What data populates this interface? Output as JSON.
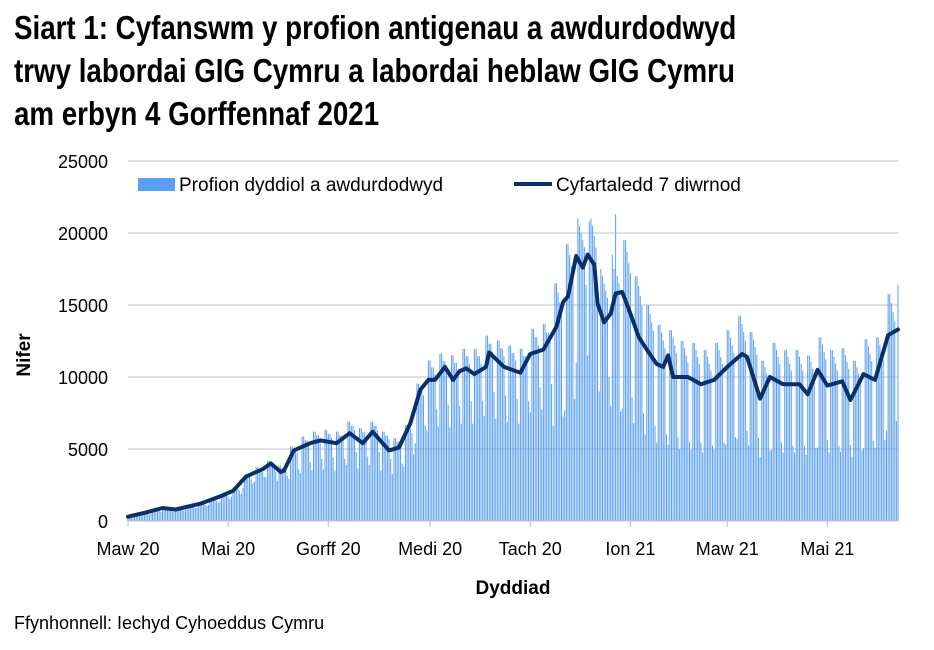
{
  "title_lines": [
    "Siart 1: Cyfanswm y profion antigenau a awdurdodwyd",
    "trwy labordai GIG Cymru a labordai heblaw GIG Cymru",
    "am erbyn 4 Gorffennaf 2021"
  ],
  "source": "Ffynhonnell: Iechyd Cyhoeddus Cymru",
  "chart_data": {
    "type": "bar+line",
    "xlabel": "Dyddiad",
    "ylabel": "Nifer",
    "ylim": [
      0,
      25000
    ],
    "yticks": [
      0,
      5000,
      10000,
      15000,
      20000,
      25000
    ],
    "xlim": [
      "2020-03-01",
      "2021-06-13"
    ],
    "xticks": [
      {
        "date": "2020-03-01",
        "label": "Maw 20"
      },
      {
        "date": "2020-05-01",
        "label": "Mai 20"
      },
      {
        "date": "2020-07-01",
        "label": "Gorff 20"
      },
      {
        "date": "2020-09-01",
        "label": "Medi 20"
      },
      {
        "date": "2020-11-01",
        "label": "Tach 20"
      },
      {
        "date": "2021-01-01",
        "label": "Ion 21"
      },
      {
        "date": "2021-03-01",
        "label": "Maw 21"
      },
      {
        "date": "2021-05-01",
        "label": "Mai 21"
      }
    ],
    "grid": true,
    "legend_position": "top",
    "colors": {
      "bars": "#5b9ff5",
      "line": "#0a2f6b",
      "grid": "#c0c0c0"
    },
    "series": [
      {
        "name": "Profion dyddiol a awdurdodwyd",
        "type": "bar",
        "start_date": "2020-03-01",
        "values": [
          280,
          390,
          390,
          370,
          370,
          350,
          320,
          400,
          550,
          550,
          530,
          530,
          500,
          450,
          560,
          770,
          770,
          740,
          740,
          700,
          630,
          720,
          990,
          990,
          950,
          950,
          900,
          810,
          640,
          880,
          880,
          840,
          840,
          800,
          720,
          800,
          1100,
          1100,
          1050,
          1050,
          1000,
          900,
          920,
          1270,
          1270,
          1210,
          1210,
          1150,
          1040,
          1120,
          1540,
          1540,
          1470,
          1470,
          1400,
          1260,
          1360,
          1870,
          1870,
          1790,
          1790,
          1700,
          1530,
          1680,
          2310,
          2310,
          2210,
          2210,
          2100,
          1890,
          2320,
          3190,
          3190,
          3050,
          3050,
          2900,
          2610,
          2720,
          3740,
          3740,
          3570,
          3570,
          3400,
          3060,
          3040,
          4180,
          4180,
          3990,
          3990,
          3800,
          3420,
          2800,
          3850,
          3850,
          3680,
          3680,
          3500,
          3150,
          2930,
          5180,
          5180,
          4950,
          4950,
          4730,
          3600,
          3320,
          5870,
          5870,
          5610,
          5610,
          5360,
          4080,
          3510,
          6210,
          6210,
          5940,
          5940,
          5670,
          4320,
          3580,
          6330,
          6330,
          6050,
          6050,
          5780,
          4400,
          3510,
          6210,
          6210,
          5940,
          5940,
          5670,
          4320,
          3900,
          6900,
          6900,
          6600,
          6600,
          6300,
          4800,
          3640,
          6440,
          6440,
          6160,
          6160,
          5880,
          4480,
          3900,
          6900,
          6900,
          6600,
          6600,
          6300,
          4800,
          3510,
          6210,
          6210,
          5940,
          5940,
          5670,
          4320,
          3250,
          5750,
          5750,
          5500,
          5500,
          5250,
          4000,
          3770,
          6670,
          6670,
          6380,
          6380,
          6090,
          4640,
          5400,
          9550,
          9550,
          9130,
          9130,
          8720,
          6640,
          6310,
          11160,
          11160,
          10670,
          10670,
          10190,
          7760,
          6570,
          11620,
          11620,
          11110,
          11110,
          10610,
          8080,
          6500,
          11500,
          11500,
          11000,
          11000,
          10500,
          8000,
          6760,
          11960,
          11960,
          11440,
          11440,
          10920,
          8320,
          6760,
          11960,
          11960,
          11440,
          11440,
          10920,
          8320,
          7280,
          12880,
          12880,
          12320,
          12320,
          11760,
          8960,
          7090,
          12540,
          12540,
          11990,
          11990,
          11450,
          8720,
          6890,
          12190,
          12190,
          11660,
          11660,
          11130,
          8480,
          6760,
          11960,
          11960,
          11440,
          11440,
          10920,
          8320,
          7540,
          13340,
          13340,
          12760,
          12760,
          12180,
          9280,
          7740,
          13690,
          13690,
          13090,
          13090,
          12500,
          9520,
          6600,
          16500,
          16500,
          15840,
          15180,
          14520,
          7260,
          7700,
          19250,
          19250,
          18480,
          17710,
          16940,
          8470,
          11000,
          21000,
          20500,
          20000,
          19500,
          19000,
          16400,
          11500,
          20800,
          21000,
          20500,
          19800,
          19000,
          15500,
          9000,
          17500,
          17000,
          16500,
          16000,
          15500,
          10000,
          8000,
          18500,
          17500,
          21300,
          17000,
          16500,
          7600,
          7800,
          19500,
          19500,
          18700,
          17900,
          17200,
          8600,
          6800,
          17000,
          17000,
          16320,
          15640,
          14960,
          7480,
          6000,
          15000,
          15000,
          14400,
          13800,
          13200,
          6600,
          5450,
          13630,
          13630,
          13080,
          12540,
          11990,
          6000,
          5300,
          13250,
          13250,
          12720,
          12190,
          11660,
          5830,
          5000,
          12500,
          12500,
          12000,
          11500,
          11000,
          5500,
          4950,
          12380,
          12380,
          11880,
          11390,
          10890,
          5450,
          4750,
          11880,
          11880,
          11400,
          10930,
          10450,
          5230,
          4950,
          12380,
          12380,
          11880,
          11390,
          10890,
          5450,
          5300,
          13250,
          13250,
          12720,
          12190,
          11660,
          5830,
          5700,
          14250,
          14250,
          13680,
          13110,
          12540,
          6270,
          5250,
          13130,
          13130,
          12600,
          12080,
          11550,
          5780,
          4450,
          11130,
          11130,
          10680,
          10240,
          9790,
          4900,
          4950,
          12380,
          12380,
          11880,
          11390,
          10890,
          5450,
          4750,
          11880,
          11880,
          11400,
          10930,
          10450,
          5230,
          4750,
          11880,
          11880,
          11400,
          10930,
          10450,
          5230,
          4600,
          11500,
          11500,
          11040,
          10580,
          10120,
          5060,
          5100,
          12750,
          12750,
          12240,
          11730,
          11220,
          5610,
          4750,
          11880,
          11880,
          11400,
          10930,
          10450,
          5230,
          4800,
          12000,
          12000,
          11520,
          11040,
          10560,
          5280,
          4450,
          11130,
          11130,
          10680,
          10240,
          9790,
          4900,
          5050,
          12630,
          12630,
          12120,
          11620,
          11110,
          5560,
          5100,
          12750,
          12750,
          12240,
          11730,
          11220,
          5610,
          6300,
          15750,
          15750,
          15120,
          14490,
          13860,
          6930,
          16400
        ]
      },
      {
        "name": "Cyfartaledd 7 diwrnod",
        "type": "line",
        "points": [
          [
            "2020-03-01",
            300
          ],
          [
            "2020-03-12",
            600
          ],
          [
            "2020-03-22",
            900
          ],
          [
            "2020-03-30",
            800
          ],
          [
            "2020-04-14",
            1200
          ],
          [
            "2020-04-26",
            1700
          ],
          [
            "2020-05-04",
            2100
          ],
          [
            "2020-05-12",
            3100
          ],
          [
            "2020-05-22",
            3600
          ],
          [
            "2020-05-27",
            4000
          ],
          [
            "2020-06-02",
            3400
          ],
          [
            "2020-06-04",
            3500
          ],
          [
            "2020-06-10",
            4900
          ],
          [
            "2020-06-20",
            5400
          ],
          [
            "2020-06-26",
            5600
          ],
          [
            "2020-07-06",
            5400
          ],
          [
            "2020-07-14",
            6100
          ],
          [
            "2020-07-22",
            5400
          ],
          [
            "2020-07-28",
            6200
          ],
          [
            "2020-08-07",
            4900
          ],
          [
            "2020-08-13",
            5100
          ],
          [
            "2020-08-20",
            6800
          ],
          [
            "2020-08-26",
            9100
          ],
          [
            "2020-08-31",
            9800
          ],
          [
            "2020-09-04",
            9800
          ],
          [
            "2020-09-10",
            10700
          ],
          [
            "2020-09-15",
            9800
          ],
          [
            "2020-09-19",
            10400
          ],
          [
            "2020-09-23",
            10600
          ],
          [
            "2020-09-28",
            10200
          ],
          [
            "2020-10-05",
            10700
          ],
          [
            "2020-10-07",
            11700
          ],
          [
            "2020-10-16",
            10700
          ],
          [
            "2020-10-26",
            10300
          ],
          [
            "2020-11-01",
            11600
          ],
          [
            "2020-11-09",
            11900
          ],
          [
            "2020-11-17",
            13500
          ],
          [
            "2020-11-21",
            15200
          ],
          [
            "2020-11-24",
            15600
          ],
          [
            "2020-11-29",
            18400
          ],
          [
            "2020-12-03",
            17600
          ],
          [
            "2020-12-06",
            18500
          ],
          [
            "2020-12-10",
            17800
          ],
          [
            "2020-12-12",
            15100
          ],
          [
            "2020-12-16",
            13800
          ],
          [
            "2020-12-20",
            14400
          ],
          [
            "2020-12-23",
            15800
          ],
          [
            "2020-12-27",
            15900
          ],
          [
            "2021-01-01",
            14400
          ],
          [
            "2021-01-06",
            12800
          ],
          [
            "2021-01-11",
            11900
          ],
          [
            "2021-01-17",
            10900
          ],
          [
            "2021-01-21",
            10700
          ],
          [
            "2021-01-24",
            11500
          ],
          [
            "2021-01-27",
            10000
          ],
          [
            "2021-02-05",
            10000
          ],
          [
            "2021-02-13",
            9500
          ],
          [
            "2021-02-21",
            9800
          ],
          [
            "2021-03-01",
            10700
          ],
          [
            "2021-03-10",
            11600
          ],
          [
            "2021-03-13",
            11400
          ],
          [
            "2021-03-21",
            8500
          ],
          [
            "2021-03-27",
            10000
          ],
          [
            "2021-04-04",
            9500
          ],
          [
            "2021-04-14",
            9500
          ],
          [
            "2021-04-19",
            8800
          ],
          [
            "2021-04-25",
            10500
          ],
          [
            "2021-05-01",
            9400
          ],
          [
            "2021-05-10",
            9700
          ],
          [
            "2021-05-15",
            8400
          ],
          [
            "2021-05-23",
            10200
          ],
          [
            "2021-05-30",
            9800
          ],
          [
            "2021-06-07",
            12900
          ],
          [
            "2021-06-13",
            13300
          ]
        ]
      }
    ]
  }
}
